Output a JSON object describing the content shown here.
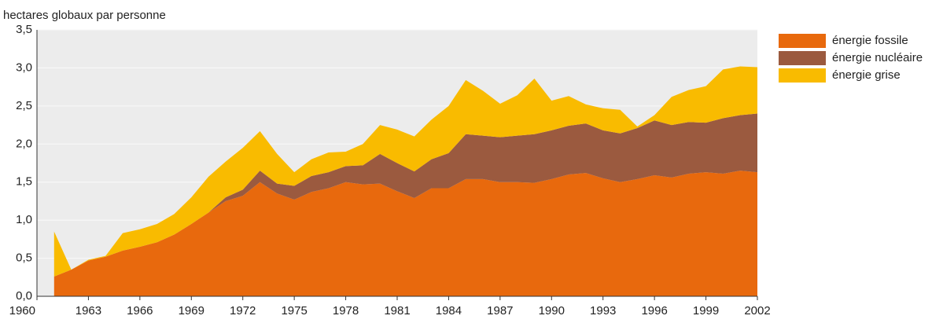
{
  "chart_data": {
    "type": "stacked-area",
    "y_label": "hectares globaux par personne",
    "x": [
      1961,
      1962,
      1963,
      1964,
      1965,
      1966,
      1967,
      1968,
      1969,
      1970,
      1971,
      1972,
      1973,
      1974,
      1975,
      1976,
      1977,
      1978,
      1979,
      1980,
      1981,
      1982,
      1983,
      1984,
      1985,
      1986,
      1987,
      1988,
      1989,
      1990,
      1991,
      1992,
      1993,
      1994,
      1995,
      1996,
      1997,
      1998,
      1999,
      2000,
      2001,
      2002
    ],
    "series": [
      {
        "name": "énergie fossile",
        "color": "#e8690d",
        "values": [
          0.26,
          0.35,
          0.47,
          0.52,
          0.6,
          0.65,
          0.71,
          0.81,
          0.95,
          1.1,
          1.25,
          1.32,
          1.5,
          1.35,
          1.27,
          1.37,
          1.42,
          1.5,
          1.47,
          1.48,
          1.38,
          1.29,
          1.42,
          1.42,
          1.54,
          1.54,
          1.5,
          1.5,
          1.49,
          1.54,
          1.6,
          1.62,
          1.55,
          1.5,
          1.54,
          1.59,
          1.56,
          1.61,
          1.63,
          1.61,
          1.65,
          1.63
        ]
      },
      {
        "name": "énergie nucléaire",
        "color": "#9b5a3f",
        "values": [
          0,
          0,
          0,
          0,
          0,
          0,
          0,
          0,
          0,
          0,
          0.05,
          0.08,
          0.15,
          0.13,
          0.18,
          0.21,
          0.21,
          0.21,
          0.25,
          0.39,
          0.37,
          0.35,
          0.38,
          0.46,
          0.59,
          0.57,
          0.59,
          0.61,
          0.64,
          0.64,
          0.64,
          0.65,
          0.63,
          0.64,
          0.67,
          0.72,
          0.69,
          0.68,
          0.65,
          0.73,
          0.73,
          0.77
        ]
      },
      {
        "name": "énergie grise",
        "color": "#f9bb00",
        "values": [
          0.59,
          0,
          0.01,
          0.01,
          0.23,
          0.23,
          0.24,
          0.27,
          0.35,
          0.47,
          0.47,
          0.55,
          0.52,
          0.39,
          0.18,
          0.22,
          0.26,
          0.19,
          0.28,
          0.38,
          0.44,
          0.46,
          0.52,
          0.62,
          0.71,
          0.59,
          0.44,
          0.53,
          0.73,
          0.39,
          0.39,
          0.25,
          0.29,
          0.31,
          0.02,
          0.07,
          0.37,
          0.42,
          0.48,
          0.64,
          0.64,
          0.61
        ]
      }
    ],
    "xlim": [
      1960,
      2002
    ],
    "xticks": [
      1960,
      1963,
      1966,
      1969,
      1972,
      1975,
      1978,
      1981,
      1984,
      1987,
      1990,
      1993,
      1996,
      1999,
      2002
    ],
    "ylim": [
      0,
      3.5
    ],
    "yticks": [
      {
        "value": 0,
        "label": "0,0"
      },
      {
        "value": 0.5,
        "label": "0,5"
      },
      {
        "value": 1,
        "label": "1,0"
      },
      {
        "value": 1.5,
        "label": "1,5"
      },
      {
        "value": 2,
        "label": "2,0"
      },
      {
        "value": 2.5,
        "label": "2,5"
      },
      {
        "value": 3,
        "label": "3,0"
      },
      {
        "value": 3.5,
        "label": "3,5"
      }
    ],
    "grid": true
  }
}
